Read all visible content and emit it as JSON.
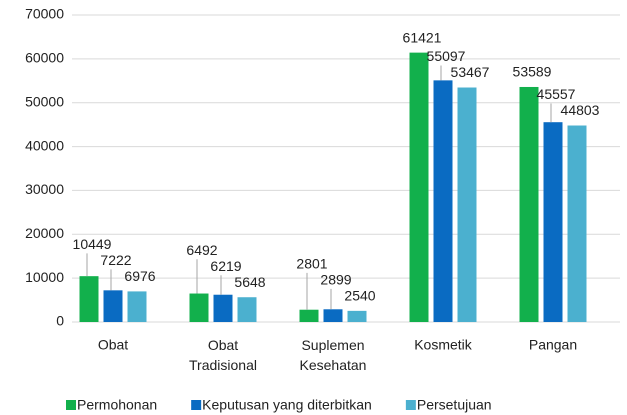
{
  "chart_data": {
    "type": "bar",
    "categories": [
      "Obat",
      "Obat Tradisional",
      "Suplemen Kesehatan",
      "Kosmetik",
      "Pangan"
    ],
    "series": [
      {
        "name": "Permohonan",
        "color": "#12b04c",
        "values": [
          10449,
          6492,
          2801,
          61421,
          53589
        ]
      },
      {
        "name": "Keputusan yang diterbitkan",
        "color": "#0a6bc2",
        "values": [
          7222,
          6219,
          2899,
          55097,
          45557
        ]
      },
      {
        "name": "Persetujuan",
        "color": "#4bb0cf",
        "values": [
          6976,
          5648,
          2540,
          53467,
          44803
        ]
      }
    ],
    "ylim": [
      0,
      70000
    ],
    "yticks": [
      0,
      10000,
      20000,
      30000,
      40000,
      50000,
      60000,
      70000
    ],
    "grid": true,
    "legend": "bottom"
  }
}
